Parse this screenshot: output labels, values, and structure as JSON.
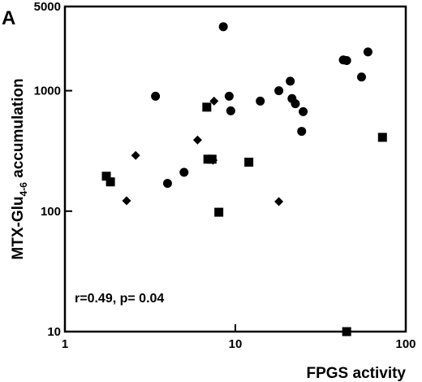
{
  "chart_data": {
    "type": "scatter",
    "panel_label": "A",
    "xlabel": "FPGS activity",
    "ylabel_main": "MTX-Glu",
    "ylabel_sub": "4-6",
    "ylabel_rest": " accumulation",
    "x_scale": "log",
    "y_scale": "log",
    "xlim": [
      1,
      100
    ],
    "ylim": [
      10,
      5000
    ],
    "x_ticks": [
      {
        "value": 1,
        "label": "1"
      },
      {
        "value": 10,
        "label": "10"
      },
      {
        "value": 100,
        "label": "100"
      }
    ],
    "y_ticks": [
      {
        "value": 10,
        "label": "10"
      },
      {
        "value": 100,
        "label": "100"
      },
      {
        "value": 1000,
        "label": "1000"
      },
      {
        "value": 5000,
        "label": "5000"
      }
    ],
    "annotation": "r=0.49, p= 0.04",
    "grid": false,
    "series": [
      {
        "marker": "circle",
        "points": [
          [
            3.4,
            900
          ],
          [
            4.0,
            170
          ],
          [
            5.0,
            210
          ],
          [
            8.5,
            3400
          ],
          [
            9.2,
            900
          ],
          [
            9.4,
            680
          ],
          [
            14,
            820
          ],
          [
            18,
            1000
          ],
          [
            21,
            1200
          ],
          [
            21.5,
            860
          ],
          [
            22.5,
            780
          ],
          [
            24.5,
            460
          ],
          [
            25,
            670
          ],
          [
            43,
            1800
          ],
          [
            45,
            1780
          ],
          [
            55,
            1300
          ],
          [
            60,
            2100
          ]
        ]
      },
      {
        "marker": "square",
        "points": [
          [
            1.75,
            195
          ],
          [
            1.85,
            175
          ],
          [
            6.8,
            730
          ],
          [
            6.9,
            270
          ],
          [
            7.3,
            270
          ],
          [
            8.0,
            98
          ],
          [
            12,
            255
          ],
          [
            45,
            10
          ],
          [
            73,
            410
          ]
        ]
      },
      {
        "marker": "diamond",
        "points": [
          [
            2.3,
            122
          ],
          [
            2.6,
            290
          ],
          [
            6.0,
            390
          ],
          [
            7.5,
            820
          ],
          [
            7.4,
            265
          ],
          [
            18,
            120
          ]
        ]
      }
    ]
  }
}
